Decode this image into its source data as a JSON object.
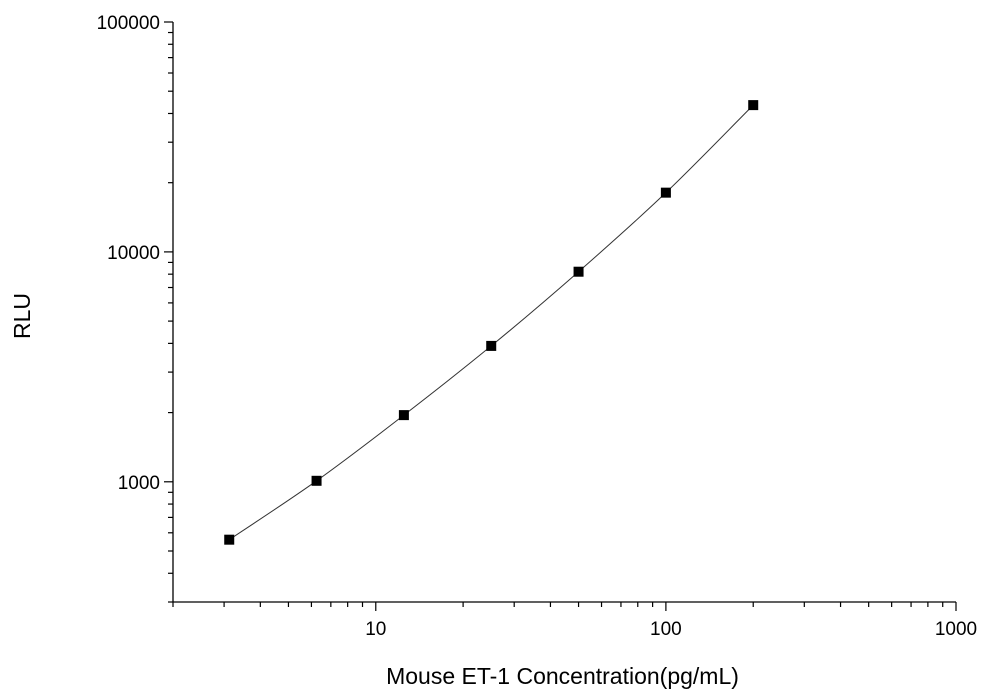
{
  "chart_data": {
    "type": "scatter",
    "xlabel": "Mouse ET-1 Concentration(pg/mL)",
    "ylabel": "RLU",
    "xscale": "log",
    "yscale": "log",
    "xlim": [
      2,
      1000
    ],
    "ylim": [
      300,
      100000
    ],
    "x_ticks": [
      10,
      100,
      1000
    ],
    "x_tick_labels": [
      "10",
      "100",
      "1000"
    ],
    "y_ticks": [
      1000,
      10000,
      100000
    ],
    "y_tick_labels": [
      "1000",
      "10000",
      "100000"
    ],
    "grid": false,
    "legend": "none",
    "marker": "square",
    "fit_line": true,
    "colors": {
      "marker": "#000000",
      "line": "#333333",
      "axis": "#000000"
    },
    "series": [
      {
        "x": [
          3.125,
          6.25,
          12.5,
          25,
          50,
          100,
          200
        ],
        "y": [
          560,
          1010,
          1950,
          3900,
          8200,
          18100,
          43500
        ]
      }
    ]
  }
}
